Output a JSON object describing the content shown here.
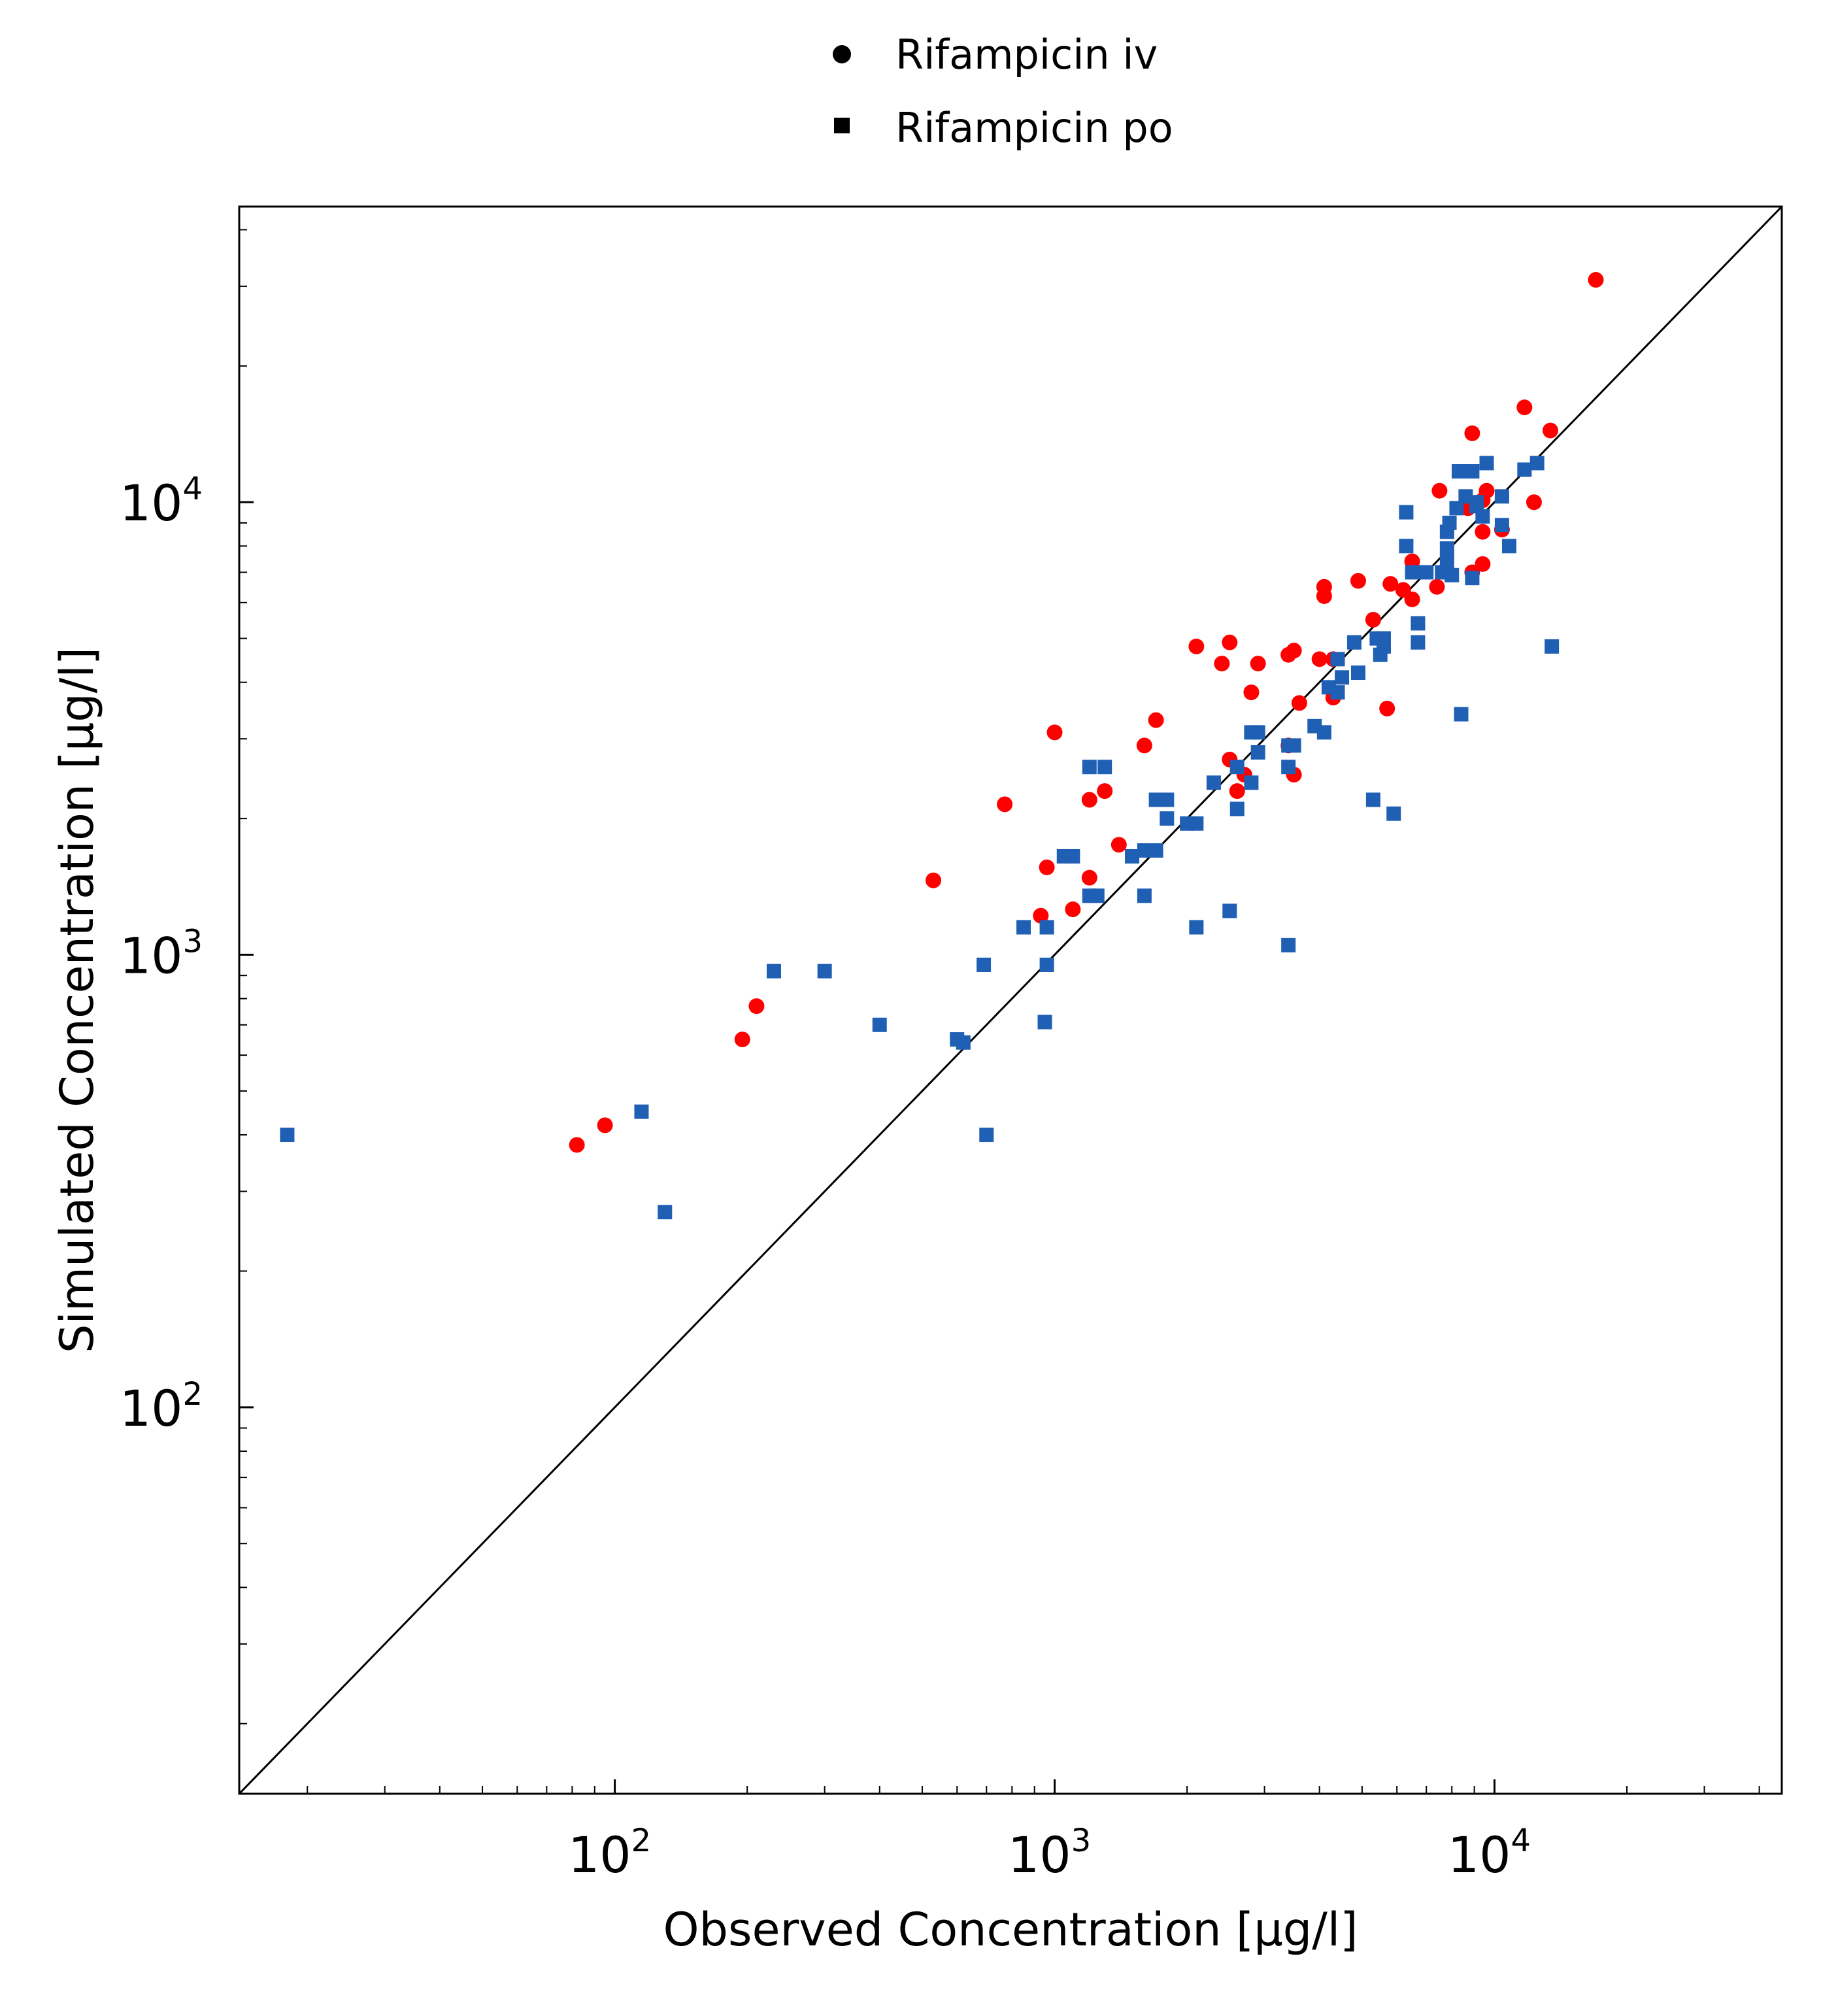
{
  "chart_data": {
    "type": "scatter",
    "title": "",
    "xlabel": "Observed Concentration [µg/l]",
    "ylabel": "Simulated Concentration [µg/l]",
    "x_scale": "log",
    "y_scale": "log",
    "xlim": [
      14,
      45000
    ],
    "ylim": [
      14,
      45000
    ],
    "x_ticks": [
      {
        "base": "10",
        "exp": "2",
        "value": 100
      },
      {
        "base": "10",
        "exp": "3",
        "value": 1000
      },
      {
        "base": "10",
        "exp": "4",
        "value": 10000
      }
    ],
    "y_ticks": [
      {
        "base": "10",
        "exp": "2",
        "value": 100
      },
      {
        "base": "10",
        "exp": "3",
        "value": 1000
      },
      {
        "base": "10",
        "exp": "4",
        "value": 10000
      }
    ],
    "grid": false,
    "legend_position": "top-center",
    "identity_line": true,
    "colors": {
      "iv": "#ff0000",
      "po": "#1f5fb4",
      "legend_marker": "#000000",
      "line": "#000000"
    },
    "series": [
      {
        "name": "Rifampicin iv",
        "marker": "circle",
        "color": "#ff0000",
        "points": [
          [
            17000,
            31000
          ],
          [
            11700,
            16200
          ],
          [
            13400,
            14400
          ],
          [
            8900,
            14200
          ],
          [
            7500,
            10600
          ],
          [
            9600,
            10600
          ],
          [
            9400,
            10100
          ],
          [
            8700,
            9700
          ],
          [
            12300,
            10000
          ],
          [
            10400,
            8700
          ],
          [
            9400,
            8600
          ],
          [
            8900,
            7000
          ],
          [
            9400,
            7300
          ],
          [
            4900,
            6700
          ],
          [
            4100,
            6200
          ],
          [
            4100,
            6500
          ],
          [
            5800,
            6600
          ],
          [
            6200,
            6400
          ],
          [
            6500,
            7400
          ],
          [
            6500,
            6100
          ],
          [
            7400,
            6500
          ],
          [
            5300,
            5500
          ],
          [
            4300,
            4500
          ],
          [
            4000,
            4500
          ],
          [
            3500,
            4700
          ],
          [
            3400,
            4600
          ],
          [
            2500,
            4900
          ],
          [
            2100,
            4800
          ],
          [
            2400,
            4400
          ],
          [
            2900,
            4400
          ],
          [
            2800,
            3800
          ],
          [
            3600,
            3600
          ],
          [
            4300,
            3700
          ],
          [
            5700,
            3500
          ],
          [
            1700,
            3300
          ],
          [
            1600,
            2900
          ],
          [
            1000,
            3100
          ],
          [
            3400,
            2900
          ],
          [
            2500,
            2700
          ],
          [
            3500,
            2500
          ],
          [
            2700,
            2500
          ],
          [
            1300,
            2300
          ],
          [
            1200,
            2200
          ],
          [
            2600,
            2300
          ],
          [
            770,
            2150
          ],
          [
            1400,
            1750
          ],
          [
            960,
            1560
          ],
          [
            1200,
            1480
          ],
          [
            530,
            1460
          ],
          [
            1100,
            1260
          ],
          [
            930,
            1220
          ],
          [
            210,
            770
          ],
          [
            195,
            650
          ],
          [
            95,
            420
          ],
          [
            82,
            380
          ]
        ]
      },
      {
        "name": "Rifampicin po",
        "marker": "square",
        "color": "#1f5fb4",
        "points": [
          [
            12500,
            12200
          ],
          [
            11700,
            11800
          ],
          [
            9600,
            12200
          ],
          [
            8300,
            11700
          ],
          [
            8900,
            11700
          ],
          [
            8600,
            10300
          ],
          [
            10400,
            10300
          ],
          [
            9100,
            10000
          ],
          [
            7900,
            9000
          ],
          [
            6300,
            9500
          ],
          [
            8200,
            9700
          ],
          [
            9400,
            9300
          ],
          [
            9100,
            9800
          ],
          [
            10400,
            8900
          ],
          [
            7800,
            8600
          ],
          [
            6300,
            8000
          ],
          [
            7800,
            7900
          ],
          [
            10800,
            8000
          ],
          [
            7800,
            7400
          ],
          [
            6500,
            7000
          ],
          [
            7000,
            7000
          ],
          [
            7600,
            7000
          ],
          [
            8000,
            6900
          ],
          [
            8900,
            6800
          ],
          [
            6700,
            5400
          ],
          [
            5400,
            5000
          ],
          [
            5600,
            5000
          ],
          [
            4800,
            4900
          ],
          [
            4400,
            4500
          ],
          [
            5600,
            4800
          ],
          [
            6700,
            4900
          ],
          [
            5500,
            4600
          ],
          [
            4500,
            4100
          ],
          [
            4900,
            4200
          ],
          [
            4200,
            3900
          ],
          [
            4400,
            3800
          ],
          [
            13500,
            4800
          ],
          [
            8400,
            3400
          ],
          [
            3900,
            3200
          ],
          [
            4100,
            3100
          ],
          [
            2900,
            3100
          ],
          [
            2800,
            3100
          ],
          [
            3500,
            2900
          ],
          [
            3400,
            2900
          ],
          [
            2900,
            2800
          ],
          [
            3400,
            2600
          ],
          [
            2600,
            2600
          ],
          [
            1200,
            2600
          ],
          [
            1300,
            2600
          ],
          [
            2300,
            2400
          ],
          [
            2800,
            2400
          ],
          [
            1700,
            2200
          ],
          [
            1800,
            2200
          ],
          [
            5300,
            2200
          ],
          [
            2600,
            2100
          ],
          [
            5900,
            2050
          ],
          [
            1800,
            2000
          ],
          [
            2100,
            1950
          ],
          [
            2000,
            1950
          ],
          [
            1700,
            1700
          ],
          [
            1600,
            1700
          ],
          [
            1500,
            1650
          ],
          [
            1050,
            1650
          ],
          [
            1100,
            1650
          ],
          [
            1200,
            1350
          ],
          [
            1250,
            1350
          ],
          [
            1600,
            1350
          ],
          [
            2500,
            1250
          ],
          [
            850,
            1150
          ],
          [
            960,
            1150
          ],
          [
            2100,
            1150
          ],
          [
            3400,
            1050
          ],
          [
            690,
            950
          ],
          [
            960,
            950
          ],
          [
            230,
            920
          ],
          [
            300,
            920
          ],
          [
            400,
            700
          ],
          [
            950,
            710
          ],
          [
            600,
            650
          ],
          [
            620,
            640
          ],
          [
            115,
            450
          ],
          [
            700,
            400
          ],
          [
            18,
            400
          ],
          [
            130,
            270
          ]
        ]
      }
    ]
  }
}
